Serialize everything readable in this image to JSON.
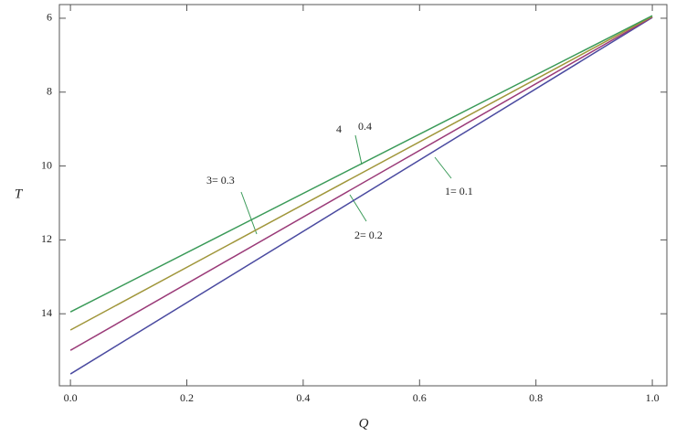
{
  "chart_data": {
    "type": "line",
    "x_label": "Q",
    "y_label": "T",
    "x": [
      0,
      1
    ],
    "series": [
      {
        "name": "1",
        "color": "#4a4aa0",
        "values": [
          15.63,
          5.98
        ]
      },
      {
        "name": "2",
        "color": "#9a3a78",
        "values": [
          14.99,
          5.97
        ]
      },
      {
        "name": "3",
        "color": "#a0963a",
        "values": [
          14.44,
          5.95
        ]
      },
      {
        "name": "4",
        "color": "#3a9a58",
        "values": [
          13.95,
          5.93
        ]
      }
    ],
    "xlim": [
      -0.019,
      1.025
    ],
    "xticks": [
      {
        "value": 0,
        "label": "0.0"
      },
      0.2,
      0.4,
      0.6,
      0.8,
      {
        "value": 1,
        "label": "1.0"
      }
    ],
    "ylim": [
      5.63,
      15.95
    ],
    "y_inverted": true,
    "yticks": [
      6,
      8,
      10,
      12,
      14
    ],
    "annotations": [
      "1= 0.1",
      "2= 0.2",
      "3= 0.3",
      "4",
      "0.4"
    ]
  }
}
